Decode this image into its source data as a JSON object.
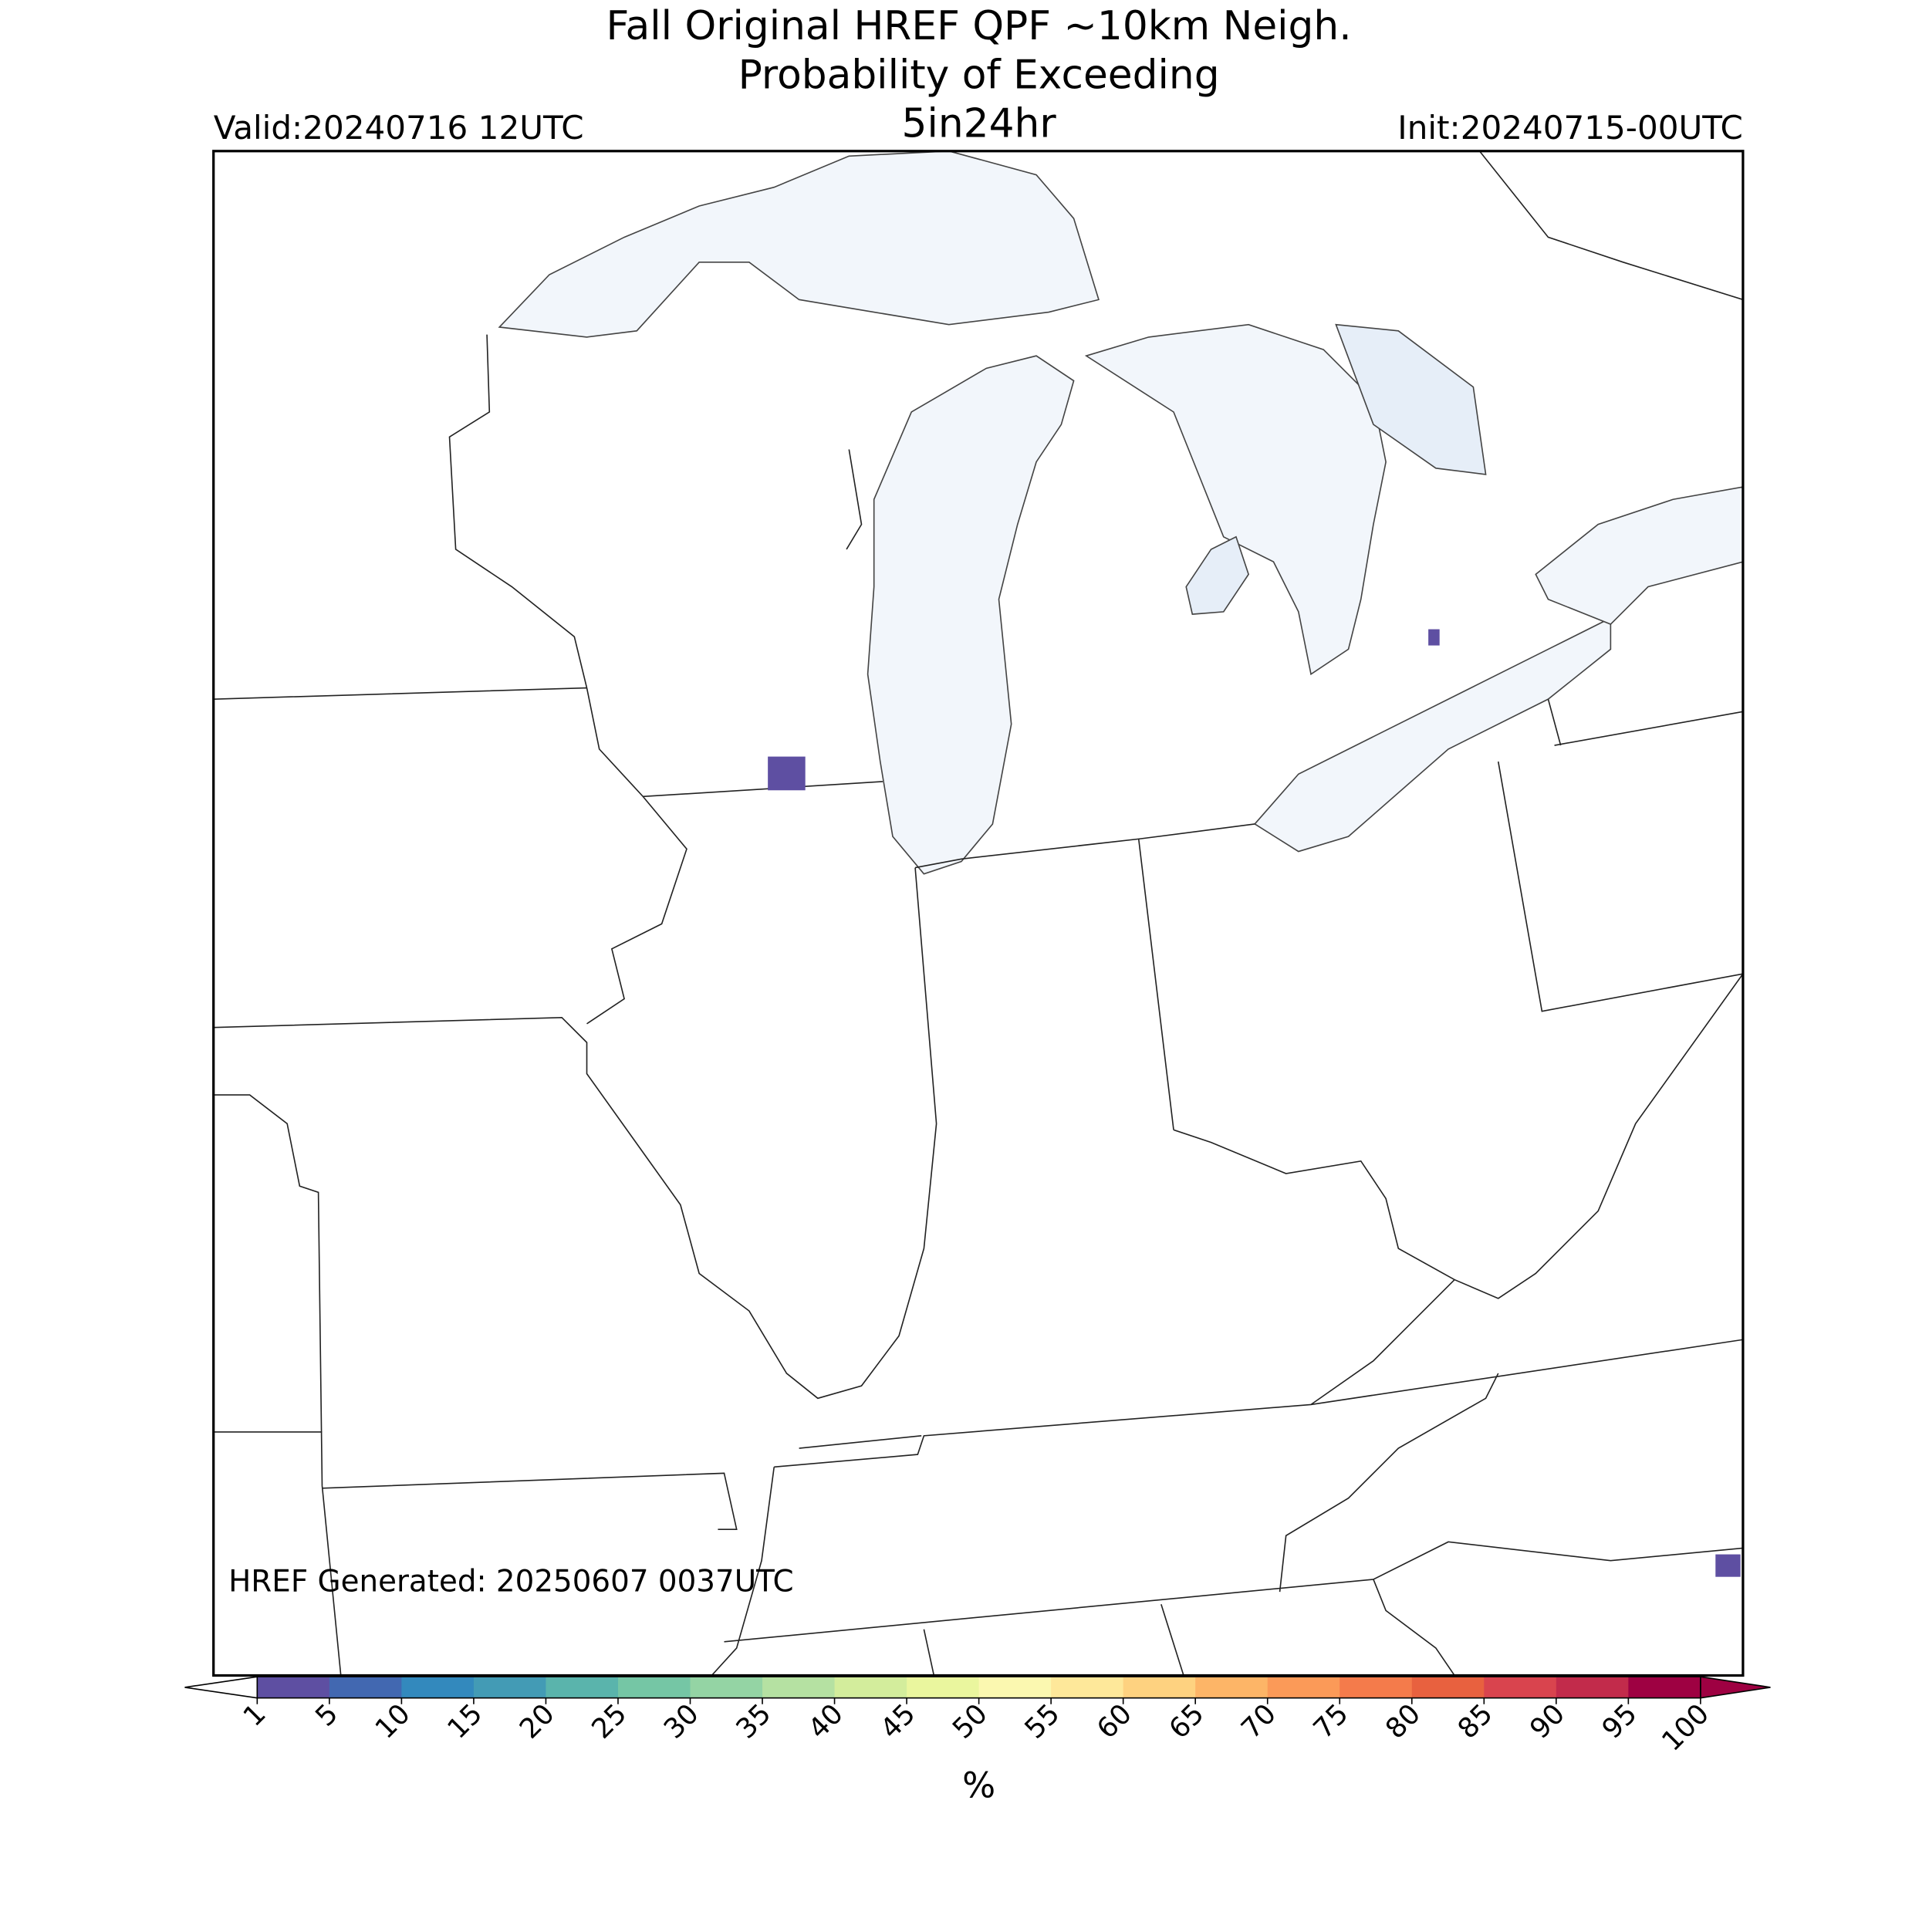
{
  "header": {
    "title_line1": "Fall Original HREF QPF ~10km Neigh.",
    "title_line2": "Probability of Exceeding",
    "threshold": "5in24hr",
    "valid": "Valid:20240716 12UTC",
    "init": "Init:20240715-00UTC"
  },
  "footer": "HREF Generated: 20250607 0037UTC",
  "colorbar": {
    "label": "%",
    "ticks": [
      1,
      5,
      10,
      15,
      20,
      25,
      30,
      35,
      40,
      45,
      50,
      55,
      60,
      65,
      70,
      75,
      80,
      85,
      90,
      95,
      100
    ],
    "colors": [
      "#5e4fa2",
      "#4268b1",
      "#3389bd",
      "#439bb5",
      "#5ab4ac",
      "#75c6a5",
      "#94d4a4",
      "#b5e1a2",
      "#d3ed9c",
      "#eaf69e",
      "#fbf8b0",
      "#fee89a",
      "#fed280",
      "#fdb567",
      "#fb9a58",
      "#f47b4b",
      "#e8613f",
      "#d9444e",
      "#c22b4b",
      "#9e0142"
    ]
  }
}
